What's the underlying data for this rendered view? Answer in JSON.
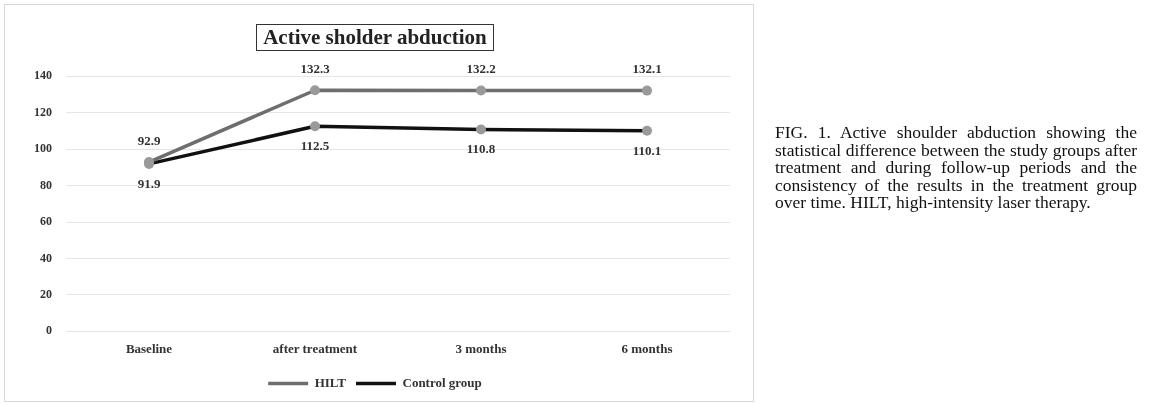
{
  "chart_data": {
    "type": "line",
    "title": "Active sholder abduction",
    "categories": [
      "Baseline",
      "after treatment",
      "3 months",
      "6 months"
    ],
    "series": [
      {
        "name": "HILT",
        "color": "#6e6e6e",
        "values": [
          92.9,
          132.3,
          132.2,
          132.1
        ]
      },
      {
        "name": "Control group",
        "color": "#111111",
        "values": [
          91.9,
          112.5,
          110.8,
          110.1
        ]
      }
    ],
    "ylim": [
      0,
      140
    ],
    "yticks": [
      0,
      20,
      40,
      60,
      80,
      100,
      120,
      140
    ],
    "grid": "y",
    "legend": "bottom",
    "marker": "circle",
    "data_labels": true,
    "annotations": [
      "FIG. 1. Active shoulder abduction showing the statistical difference between the study groups after treatment and during follow-up periods and the consistency of the results in the treatment group over time. HILT, high-intensity laser therapy."
    ]
  }
}
